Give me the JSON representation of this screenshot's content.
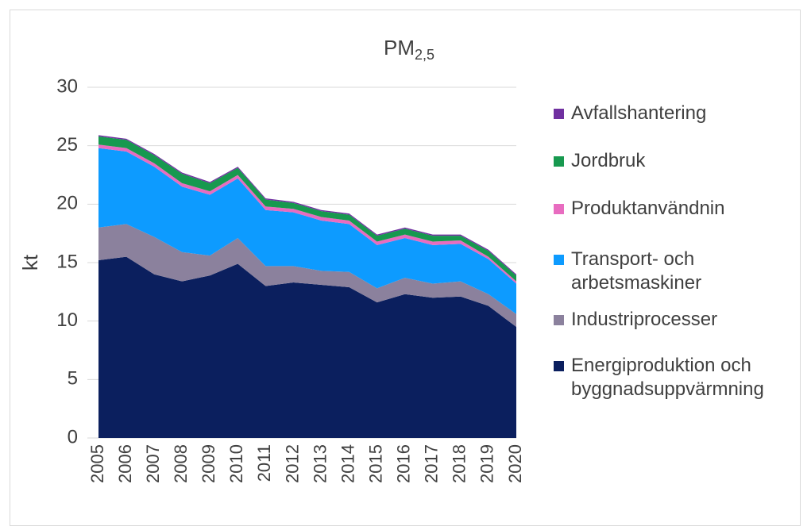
{
  "chart_data": {
    "type": "stacked_area",
    "title": "PM",
    "title_subscript": "2,5",
    "ylabel": "kt",
    "categories": [
      "2005",
      "2006",
      "2007",
      "2008",
      "2009",
      "2010",
      "2011",
      "2012",
      "2013",
      "2014",
      "2015",
      "2016",
      "2017",
      "2018",
      "2019",
      "2020"
    ],
    "ylim": [
      0,
      30
    ],
    "yticks": [
      0,
      5,
      10,
      15,
      20,
      25,
      30
    ],
    "grid": true,
    "legend": "right",
    "series": [
      {
        "name": "Energiproduktion och byggnadsuppvärmning",
        "color": "#0b1f5e",
        "values": [
          15.2,
          15.5,
          14.0,
          13.4,
          13.9,
          14.9,
          13.0,
          13.3,
          13.1,
          12.9,
          11.6,
          12.3,
          12.0,
          12.1,
          11.3,
          9.5
        ]
      },
      {
        "name": "Industriprocesser",
        "color": "#8b819d",
        "values": [
          2.8,
          2.8,
          3.2,
          2.5,
          1.7,
          2.2,
          1.7,
          1.4,
          1.2,
          1.3,
          1.2,
          1.4,
          1.2,
          1.3,
          1.0,
          1.1
        ]
      },
      {
        "name": "Transport- och arbetsmaskiner",
        "color": "#0d9bff",
        "values": [
          6.8,
          6.2,
          6.0,
          5.6,
          5.2,
          5.1,
          4.8,
          4.6,
          4.3,
          4.1,
          3.7,
          3.4,
          3.3,
          3.2,
          3.0,
          2.6
        ]
      },
      {
        "name": "Produktanvändnin",
        "color": "#e86cc0",
        "values": [
          0.3,
          0.3,
          0.3,
          0.3,
          0.3,
          0.3,
          0.3,
          0.3,
          0.3,
          0.3,
          0.3,
          0.3,
          0.3,
          0.3,
          0.2,
          0.2
        ]
      },
      {
        "name": "Jordbruk",
        "color": "#17994f",
        "values": [
          0.7,
          0.7,
          0.7,
          0.8,
          0.7,
          0.6,
          0.6,
          0.5,
          0.5,
          0.5,
          0.5,
          0.5,
          0.5,
          0.4,
          0.5,
          0.5
        ]
      },
      {
        "name": "Avfallshantering",
        "color": "#7030a0",
        "values": [
          0.1,
          0.1,
          0.1,
          0.1,
          0.1,
          0.1,
          0.1,
          0.1,
          0.1,
          0.1,
          0.1,
          0.1,
          0.1,
          0.1,
          0.1,
          0.1
        ]
      }
    ]
  }
}
